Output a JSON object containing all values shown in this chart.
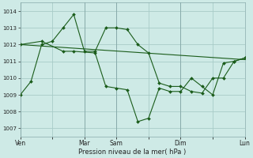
{
  "bg_color": "#ceeae6",
  "grid_color": "#a8ccc8",
  "line_color": "#1a5c1a",
  "marker_color": "#1a5c1a",
  "xlabel": "Pression niveau de la mer( hPa )",
  "ylim": [
    1006.5,
    1014.5
  ],
  "yticks": [
    1007,
    1008,
    1009,
    1010,
    1011,
    1012,
    1013,
    1014
  ],
  "xtick_labels": [
    "Ven",
    "",
    "Mar",
    "Sam",
    "",
    "Dim",
    "",
    "Lun"
  ],
  "xtick_positions": [
    0,
    3,
    6,
    9,
    12,
    15,
    18,
    21
  ],
  "vline_positions": [
    0,
    6,
    9,
    15,
    21
  ],
  "series1_x": [
    0,
    1,
    2,
    3,
    4,
    5,
    6,
    7,
    8,
    9,
    10,
    11,
    12,
    13,
    14,
    15,
    16,
    17,
    18,
    19,
    20,
    21
  ],
  "series1_y": [
    1009.0,
    1009.8,
    1012.0,
    1012.2,
    1013.0,
    1013.8,
    1011.6,
    1011.6,
    1013.0,
    1013.0,
    1012.9,
    1012.0,
    1011.5,
    1009.7,
    1009.5,
    1009.5,
    1009.2,
    1009.1,
    1010.0,
    1010.0,
    1011.0,
    1011.2
  ],
  "series2_x": [
    0,
    2,
    4,
    5,
    7,
    8,
    9,
    10,
    11,
    12,
    13,
    14,
    15,
    16,
    17,
    18,
    19,
    20,
    21
  ],
  "series2_y": [
    1012.0,
    1012.2,
    1011.6,
    1011.6,
    1011.5,
    1009.5,
    1009.4,
    1009.3,
    1007.4,
    1007.6,
    1009.4,
    1009.2,
    1009.2,
    1010.0,
    1009.5,
    1009.0,
    1010.9,
    1011.0,
    1011.2
  ],
  "trend_x": [
    0,
    21
  ],
  "trend_y": [
    1012.0,
    1011.1
  ]
}
